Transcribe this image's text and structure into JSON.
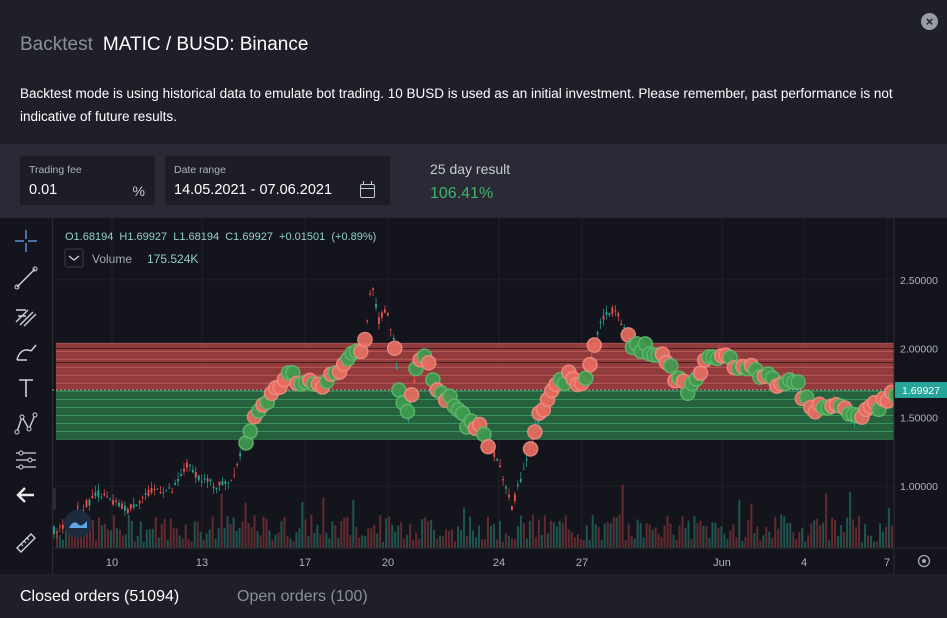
{
  "header": {
    "mode_label": "Backtest",
    "pair_title": "MATIC / BUSD: Binance",
    "close_icon": "close-icon",
    "description": "Backtest mode is using historical data to emulate bot trading. 10 BUSD is used as an initial investment. Please remember, past performance is not indicative of future results."
  },
  "params": {
    "trading_fee": {
      "label": "Trading fee",
      "value": "0.01",
      "suffix": "%"
    },
    "date_range": {
      "label": "Date range",
      "value": "14.05.2021 - 07.06.2021",
      "icon": "calendar-icon"
    },
    "result": {
      "label": "25 day result",
      "value": "106.41%"
    }
  },
  "colors": {
    "positive": "#3fb36a",
    "grid_red": "#c84a4a",
    "grid_green": "#2e8b4f",
    "up_candle": "#26a69a",
    "down_candle": "#ef5350",
    "price_tag": "#26a69a"
  },
  "chart": {
    "legend": {
      "ohlc": "O1.68194  H1.69927  L1.68194  C1.69927  +0.01501  (+0.89%)",
      "volume_label": "Volume",
      "volume_value": "175.524K"
    },
    "last_price_label": "1.69927",
    "settings_icon": "gear-icon",
    "tools": [
      "crosshair-icon",
      "trend-line-icon",
      "fib-icon",
      "brush-icon",
      "text-icon",
      "pattern-icon",
      "measure-icon",
      "back-arrow-icon",
      "ruler-icon",
      "magnet-icon"
    ],
    "logo_icon": "tradingview-logo-icon"
  },
  "chart_data": {
    "type": "candlestick",
    "x_ticks": [
      "10",
      "13",
      "17",
      "20",
      "24",
      "27",
      "Jun",
      "4",
      "7"
    ],
    "y_ticks": [
      "2.50000",
      "2.00000",
      "1.50000",
      "1.00000"
    ],
    "ylim": [
      0.55,
      2.95
    ],
    "grid_upper_range": [
      1.69927,
      2.04
    ],
    "grid_lower_range": [
      1.34,
      1.69927
    ],
    "price_path": [
      [
        0,
        0.68
      ],
      [
        4,
        0.72
      ],
      [
        8,
        0.85
      ],
      [
        12,
        0.95
      ],
      [
        16,
        0.88
      ],
      [
        20,
        0.83
      ],
      [
        24,
        0.92
      ],
      [
        28,
        0.98
      ],
      [
        32,
        0.96
      ],
      [
        36,
        1.15
      ],
      [
        40,
        1.05
      ],
      [
        44,
        1.0
      ],
      [
        48,
        1.05
      ],
      [
        52,
        1.35
      ],
      [
        56,
        1.55
      ],
      [
        60,
        1.72
      ],
      [
        64,
        1.8
      ],
      [
        68,
        1.72
      ],
      [
        72,
        1.75
      ],
      [
        76,
        1.8
      ],
      [
        80,
        1.95
      ],
      [
        84,
        2.0
      ],
      [
        86,
        2.5
      ],
      [
        88,
        2.2
      ],
      [
        90,
        2.3
      ],
      [
        92,
        2.05
      ],
      [
        94,
        1.6
      ],
      [
        96,
        1.5
      ],
      [
        98,
        1.85
      ],
      [
        100,
        1.95
      ],
      [
        104,
        1.7
      ],
      [
        108,
        1.6
      ],
      [
        112,
        1.45
      ],
      [
        116,
        1.4
      ],
      [
        120,
        1.2
      ],
      [
        124,
        0.85
      ],
      [
        128,
        1.2
      ],
      [
        132,
        1.55
      ],
      [
        136,
        1.75
      ],
      [
        140,
        1.8
      ],
      [
        144,
        1.75
      ],
      [
        148,
        2.2
      ],
      [
        152,
        2.3
      ],
      [
        156,
        2.05
      ],
      [
        160,
        2.0
      ],
      [
        164,
        1.95
      ],
      [
        168,
        1.8
      ],
      [
        172,
        1.7
      ],
      [
        176,
        1.9
      ],
      [
        180,
        1.95
      ],
      [
        184,
        1.9
      ],
      [
        188,
        1.85
      ],
      [
        192,
        1.8
      ],
      [
        196,
        1.75
      ],
      [
        200,
        1.8
      ],
      [
        204,
        1.6
      ],
      [
        208,
        1.55
      ],
      [
        212,
        1.6
      ],
      [
        216,
        1.48
      ],
      [
        220,
        1.55
      ],
      [
        224,
        1.6
      ],
      [
        228,
        1.7
      ]
    ]
  },
  "tabs": [
    {
      "label": "Closed orders (51094)",
      "active": true
    },
    {
      "label": "Open orders (100)",
      "active": false
    }
  ]
}
